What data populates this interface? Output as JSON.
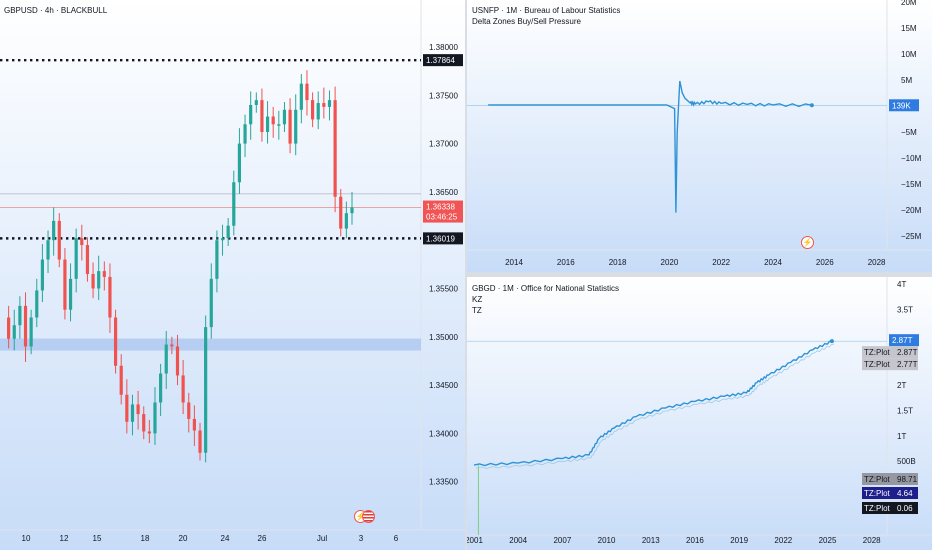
{
  "colors": {
    "up": "#26a69a",
    "down": "#ef5350",
    "line": "#2e93d6",
    "bg_top": "#ffffff",
    "bg_bottom": "#c7dcf8",
    "zone": "#aac4ef",
    "price_tag": "#f05454",
    "dark_tag": "#131722",
    "gray_tag": "#9598a1",
    "navy_tag": "#1e1e8c",
    "blue_tag": "#2f7ce0"
  },
  "left": {
    "title": "GBPUSD · 4h · BLACKBULL",
    "last_price": "1.36338",
    "countdown": "03:46:25",
    "level_high": "1.37864",
    "level_low": "1.36019"
  },
  "right_top": {
    "title": "USNFP · 1M · Bureau of Labour Statistics",
    "subtitle": "Delta Zones Buy/Sell Pressure",
    "last_value": "139K"
  },
  "right_bottom": {
    "title": "GBGD · 1M · Office for National Statistics",
    "line2": "KZ",
    "line3": "TZ",
    "tags": [
      {
        "label": "TZ:Plot",
        "value": "2.87T"
      },
      {
        "label": "TZ:Plot",
        "value": "2.77T"
      },
      {
        "label": "TZ:Plot",
        "value": "98.71"
      },
      {
        "label": "TZ:Plot",
        "value": "4.64"
      },
      {
        "label": "TZ:Plot",
        "value": "0.06"
      }
    ],
    "last_value": "2.87T"
  },
  "chart_data": [
    {
      "type": "candlestick",
      "symbol": "GBPUSD",
      "timeframe": "4h",
      "xticks": [
        "10",
        "12",
        "15",
        "18",
        "20",
        "24",
        "26",
        "Jul",
        "3",
        "6"
      ],
      "yticks": [
        "1.38000",
        "1.37500",
        "1.37000",
        "1.36500",
        "1.36000",
        "1.35500",
        "1.35000",
        "1.34500",
        "1.34000",
        "1.33500"
      ],
      "ylim": [
        1.3325,
        1.3825
      ],
      "horizontal_levels": [
        1.37864,
        1.36019
      ],
      "demand_zone": [
        1.3486,
        1.3493
      ],
      "close_path": [
        1.352,
        1.3498,
        1.3512,
        1.3532,
        1.349,
        1.352,
        1.3548,
        1.358,
        1.36,
        1.362,
        1.358,
        1.3528,
        1.356,
        1.3602,
        1.3595,
        1.3565,
        1.355,
        1.3568,
        1.3562,
        1.352,
        1.347,
        1.344,
        1.3412,
        1.343,
        1.342,
        1.3402,
        1.34,
        1.3432,
        1.3462,
        1.3492,
        1.349,
        1.346,
        1.3432,
        1.3415,
        1.3403,
        1.338,
        1.351,
        1.356,
        1.36,
        1.3602,
        1.3615,
        1.366,
        1.37,
        1.372,
        1.374,
        1.3745,
        1.3712,
        1.3728,
        1.372,
        1.372,
        1.3735,
        1.37,
        1.3735,
        1.3762,
        1.3745,
        1.3725,
        1.3742,
        1.3738,
        1.3745,
        1.3645,
        1.3612,
        1.3628,
        1.3634
      ]
    },
    {
      "type": "line",
      "symbol": "USNFP",
      "timeframe": "1M",
      "xticks": [
        "2014",
        "2016",
        "2018",
        "2020",
        "2022",
        "2024",
        "2026",
        "2028"
      ],
      "yticks": [
        "20M",
        "15M",
        "10M",
        "5M",
        "0",
        "−5M",
        "−10M",
        "−15M",
        "−20M",
        "−25M"
      ],
      "ylim": [
        -28,
        20
      ],
      "unit": "M",
      "series": [
        {
          "x": [
            2013.0,
            2019.9,
            2020.2,
            2020.25,
            2020.3,
            2020.4,
            2020.5,
            2020.6,
            2020.8,
            2021.0,
            2021.5,
            2022.0,
            2023.0,
            2024.0,
            2025.5
          ],
          "values": [
            0.2,
            0.2,
            -0.5,
            -20.5,
            -5,
            4.8,
            2.5,
            1.5,
            0.6,
            0.4,
            0.8,
            0.5,
            0.3,
            0.2,
            0.139
          ]
        }
      ]
    },
    {
      "type": "line",
      "symbol": "GBGD",
      "timeframe": "1M",
      "xticks": [
        "2001",
        "2004",
        "2007",
        "2010",
        "2013",
        "2016",
        "2019",
        "2022",
        "2025",
        "2028"
      ],
      "yticks": [
        "4T",
        "3.5T",
        "3T",
        "2.5T",
        "2T",
        "1.5T",
        "1T",
        "500B"
      ],
      "ylim": [
        0.2,
        4.2
      ],
      "unit": "T",
      "series": [
        {
          "x": [
            2001,
            2004,
            2007,
            2008.8,
            2009.5,
            2010.5,
            2012,
            2014,
            2016,
            2018,
            2019.5,
            2020.2,
            2021,
            2022.5,
            2024,
            2025.3
          ],
          "values": [
            0.42,
            0.46,
            0.55,
            0.62,
            0.95,
            1.15,
            1.38,
            1.55,
            1.68,
            1.78,
            1.85,
            2.05,
            2.2,
            2.45,
            2.7,
            2.87
          ]
        }
      ]
    }
  ]
}
